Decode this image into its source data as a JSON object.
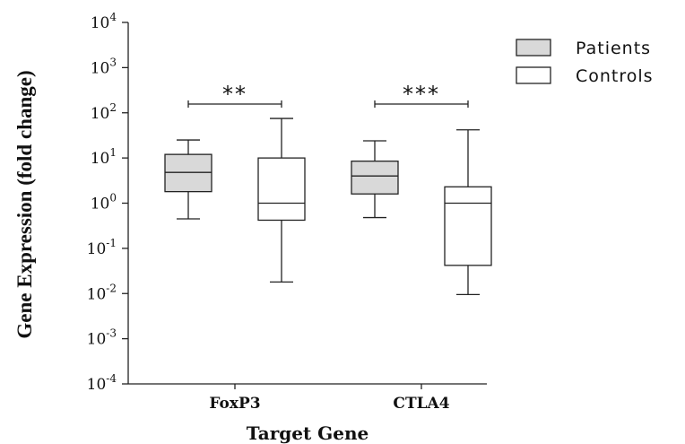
{
  "chart_data": {
    "type": "box",
    "xlabel": "Target Gene",
    "ylabel": "Gene Expression (fold change)",
    "yscale": "log10",
    "ylim": [
      0.0001,
      10000
    ],
    "yticks": [
      {
        "value": 0.0001,
        "base": "10",
        "exp": "-4"
      },
      {
        "value": 0.001,
        "base": "10",
        "exp": "-3"
      },
      {
        "value": 0.01,
        "base": "10",
        "exp": "-2"
      },
      {
        "value": 0.1,
        "base": "10",
        "exp": "-1"
      },
      {
        "value": 1,
        "base": "10",
        "exp": "0"
      },
      {
        "value": 10,
        "base": "10",
        "exp": "1"
      },
      {
        "value": 100,
        "base": "10",
        "exp": "2"
      },
      {
        "value": 1000,
        "base": "10",
        "exp": "3"
      },
      {
        "value": 10000,
        "base": "10",
        "exp": "4"
      }
    ],
    "categories": [
      "FoxP3",
      "CTLA4"
    ],
    "legend_position": "top-right",
    "series": [
      {
        "name": "Patients",
        "color": "#d9d9d9",
        "boxes": [
          {
            "min": 0.45,
            "q1": 1.8,
            "median": 4.8,
            "q3": 12,
            "max": 25
          },
          {
            "min": 0.48,
            "q1": 1.6,
            "median": 4.0,
            "q3": 8.5,
            "max": 24
          }
        ]
      },
      {
        "name": "Controls",
        "color": "#ffffff",
        "boxes": [
          {
            "min": 0.018,
            "q1": 0.42,
            "median": 1.0,
            "q3": 10,
            "max": 75
          },
          {
            "min": 0.0095,
            "q1": 0.042,
            "median": 1.0,
            "q3": 2.3,
            "max": 42
          }
        ]
      }
    ],
    "annotations": [
      {
        "category": "FoxP3",
        "text": "**"
      },
      {
        "category": "CTLA4",
        "text": "***"
      }
    ]
  }
}
